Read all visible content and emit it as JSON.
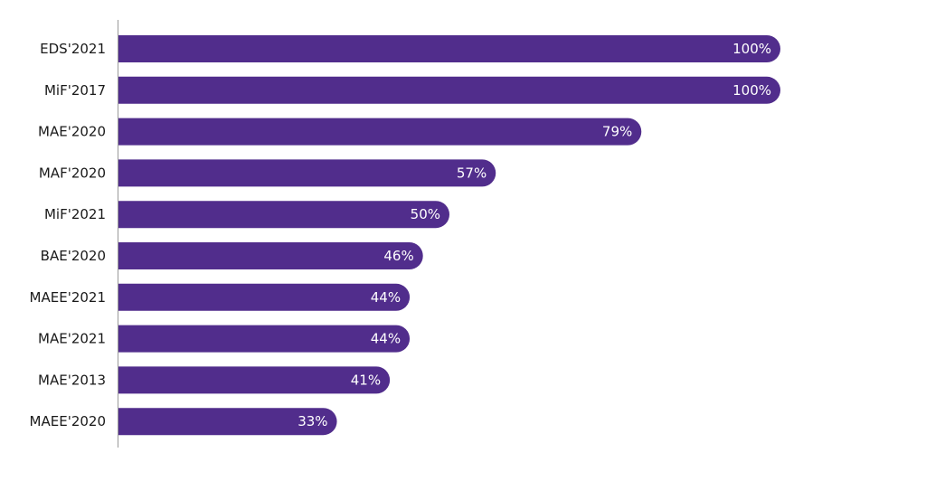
{
  "chart_data": {
    "type": "bar",
    "orientation": "horizontal",
    "title": "",
    "xlabel": "",
    "ylabel": "",
    "categories": [
      "EDS'2021",
      "MiF'2017",
      "MAE'2020",
      "MAF'2020",
      "MiF'2021",
      "BAE'2020",
      "MAEE'2021",
      "MAE'2021",
      "MAE'2013",
      "MAEE'2020"
    ],
    "values": [
      100,
      100,
      79,
      57,
      50,
      46,
      44,
      44,
      41,
      33
    ],
    "value_labels": [
      "100%",
      "100%",
      "79%",
      "57%",
      "50%",
      "46%",
      "44%",
      "44%",
      "41%",
      "33%"
    ],
    "xlim": [
      0,
      100
    ],
    "unit": "%",
    "grid": false,
    "legend": "none",
    "bar_color": "#512D8C",
    "axis_color": "#9a9a9a"
  }
}
